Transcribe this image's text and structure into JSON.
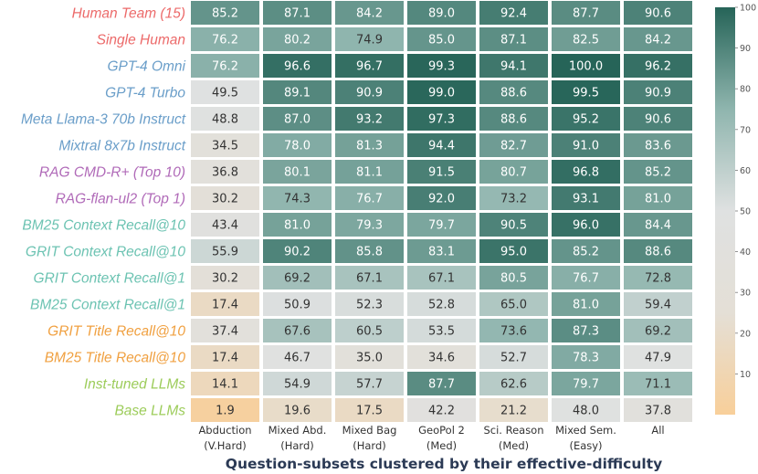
{
  "chart_data": {
    "type": "heatmap",
    "xlabel": "Question-subsets clustered by their effective-difficulty",
    "columns": [
      {
        "name": "Abduction",
        "difficulty": "(V.Hard)"
      },
      {
        "name": "Mixed Abd.",
        "difficulty": "(Hard)"
      },
      {
        "name": "Mixed Bag",
        "difficulty": "(Hard)"
      },
      {
        "name": "GeoPol 2",
        "difficulty": "(Med)"
      },
      {
        "name": "Sci. Reason",
        "difficulty": "(Med)"
      },
      {
        "name": "Mixed Sem.",
        "difficulty": "(Easy)"
      },
      {
        "name": "All",
        "difficulty": ""
      }
    ],
    "rows": [
      {
        "label": "Human Team (15)",
        "color": "#ec6a6a",
        "values": [
          85.2,
          87.1,
          84.2,
          89.0,
          92.4,
          87.7,
          90.6
        ]
      },
      {
        "label": "Single Human",
        "color": "#ec6a6a",
        "values": [
          76.2,
          80.2,
          74.9,
          85.0,
          87.1,
          82.5,
          84.2
        ]
      },
      {
        "label": "GPT-4 Omni",
        "color": "#6a9ec9",
        "values": [
          76.2,
          96.6,
          96.7,
          99.3,
          94.1,
          100.0,
          96.2
        ]
      },
      {
        "label": "GPT-4 Turbo",
        "color": "#6a9ec9",
        "values": [
          49.5,
          89.1,
          90.9,
          99.0,
          88.6,
          99.5,
          90.9
        ]
      },
      {
        "label": "Meta Llama-3 70b Instruct",
        "color": "#6a9ec9",
        "values": [
          48.8,
          87.0,
          93.2,
          97.3,
          88.6,
          95.2,
          90.6
        ]
      },
      {
        "label": "Mixtral 8x7b Instruct",
        "color": "#6a9ec9",
        "values": [
          34.5,
          78.0,
          81.3,
          94.4,
          82.7,
          91.0,
          83.6
        ]
      },
      {
        "label": "RAG CMD-R+ (Top 10)",
        "color": "#b06ab8",
        "values": [
          36.8,
          80.1,
          81.1,
          91.5,
          80.7,
          96.8,
          85.2
        ]
      },
      {
        "label": "RAG-flan-ul2 (Top 1)",
        "color": "#b06ab8",
        "values": [
          30.2,
          74.3,
          76.7,
          92.0,
          73.2,
          93.1,
          81.0
        ]
      },
      {
        "label": "BM25 Context Recall@10",
        "color": "#6cc3b2",
        "values": [
          43.4,
          81.0,
          79.3,
          79.7,
          90.5,
          96.0,
          84.4
        ]
      },
      {
        "label": "GRIT Context Recall@10",
        "color": "#6cc3b2",
        "values": [
          55.9,
          90.2,
          85.8,
          83.1,
          95.0,
          85.2,
          88.6
        ]
      },
      {
        "label": "GRIT Context Recall@1",
        "color": "#6cc3b2",
        "values": [
          30.2,
          69.2,
          67.1,
          67.1,
          80.5,
          76.7,
          72.8
        ]
      },
      {
        "label": "BM25 Context Recall@1",
        "color": "#6cc3b2",
        "values": [
          17.4,
          50.9,
          52.3,
          52.8,
          65.0,
          81.0,
          59.4
        ]
      },
      {
        "label": "GRIT Title Recall@10",
        "color": "#f0a040",
        "values": [
          37.4,
          67.6,
          60.5,
          53.5,
          73.6,
          87.3,
          69.2
        ]
      },
      {
        "label": "BM25 Title Recall@10",
        "color": "#f0a040",
        "values": [
          17.4,
          46.7,
          35.0,
          34.6,
          52.7,
          78.3,
          47.9
        ]
      },
      {
        "label": "Inst-tuned LLMs",
        "color": "#9ccc5a",
        "values": [
          14.1,
          54.9,
          57.7,
          87.7,
          62.6,
          79.7,
          71.1
        ]
      },
      {
        "label": "Base LLMs",
        "color": "#9ccc5a",
        "values": [
          1.9,
          19.6,
          17.5,
          42.2,
          21.2,
          48.0,
          37.8
        ]
      }
    ],
    "colorbar": {
      "range": [
        0,
        100
      ],
      "ticks": [
        10,
        20,
        30,
        40,
        50,
        60,
        70,
        80,
        90,
        100
      ],
      "stops": [
        "#f8cf9a",
        "#e4dfd6",
        "#dfe1e1",
        "#8fb5ae",
        "#266458"
      ]
    }
  }
}
